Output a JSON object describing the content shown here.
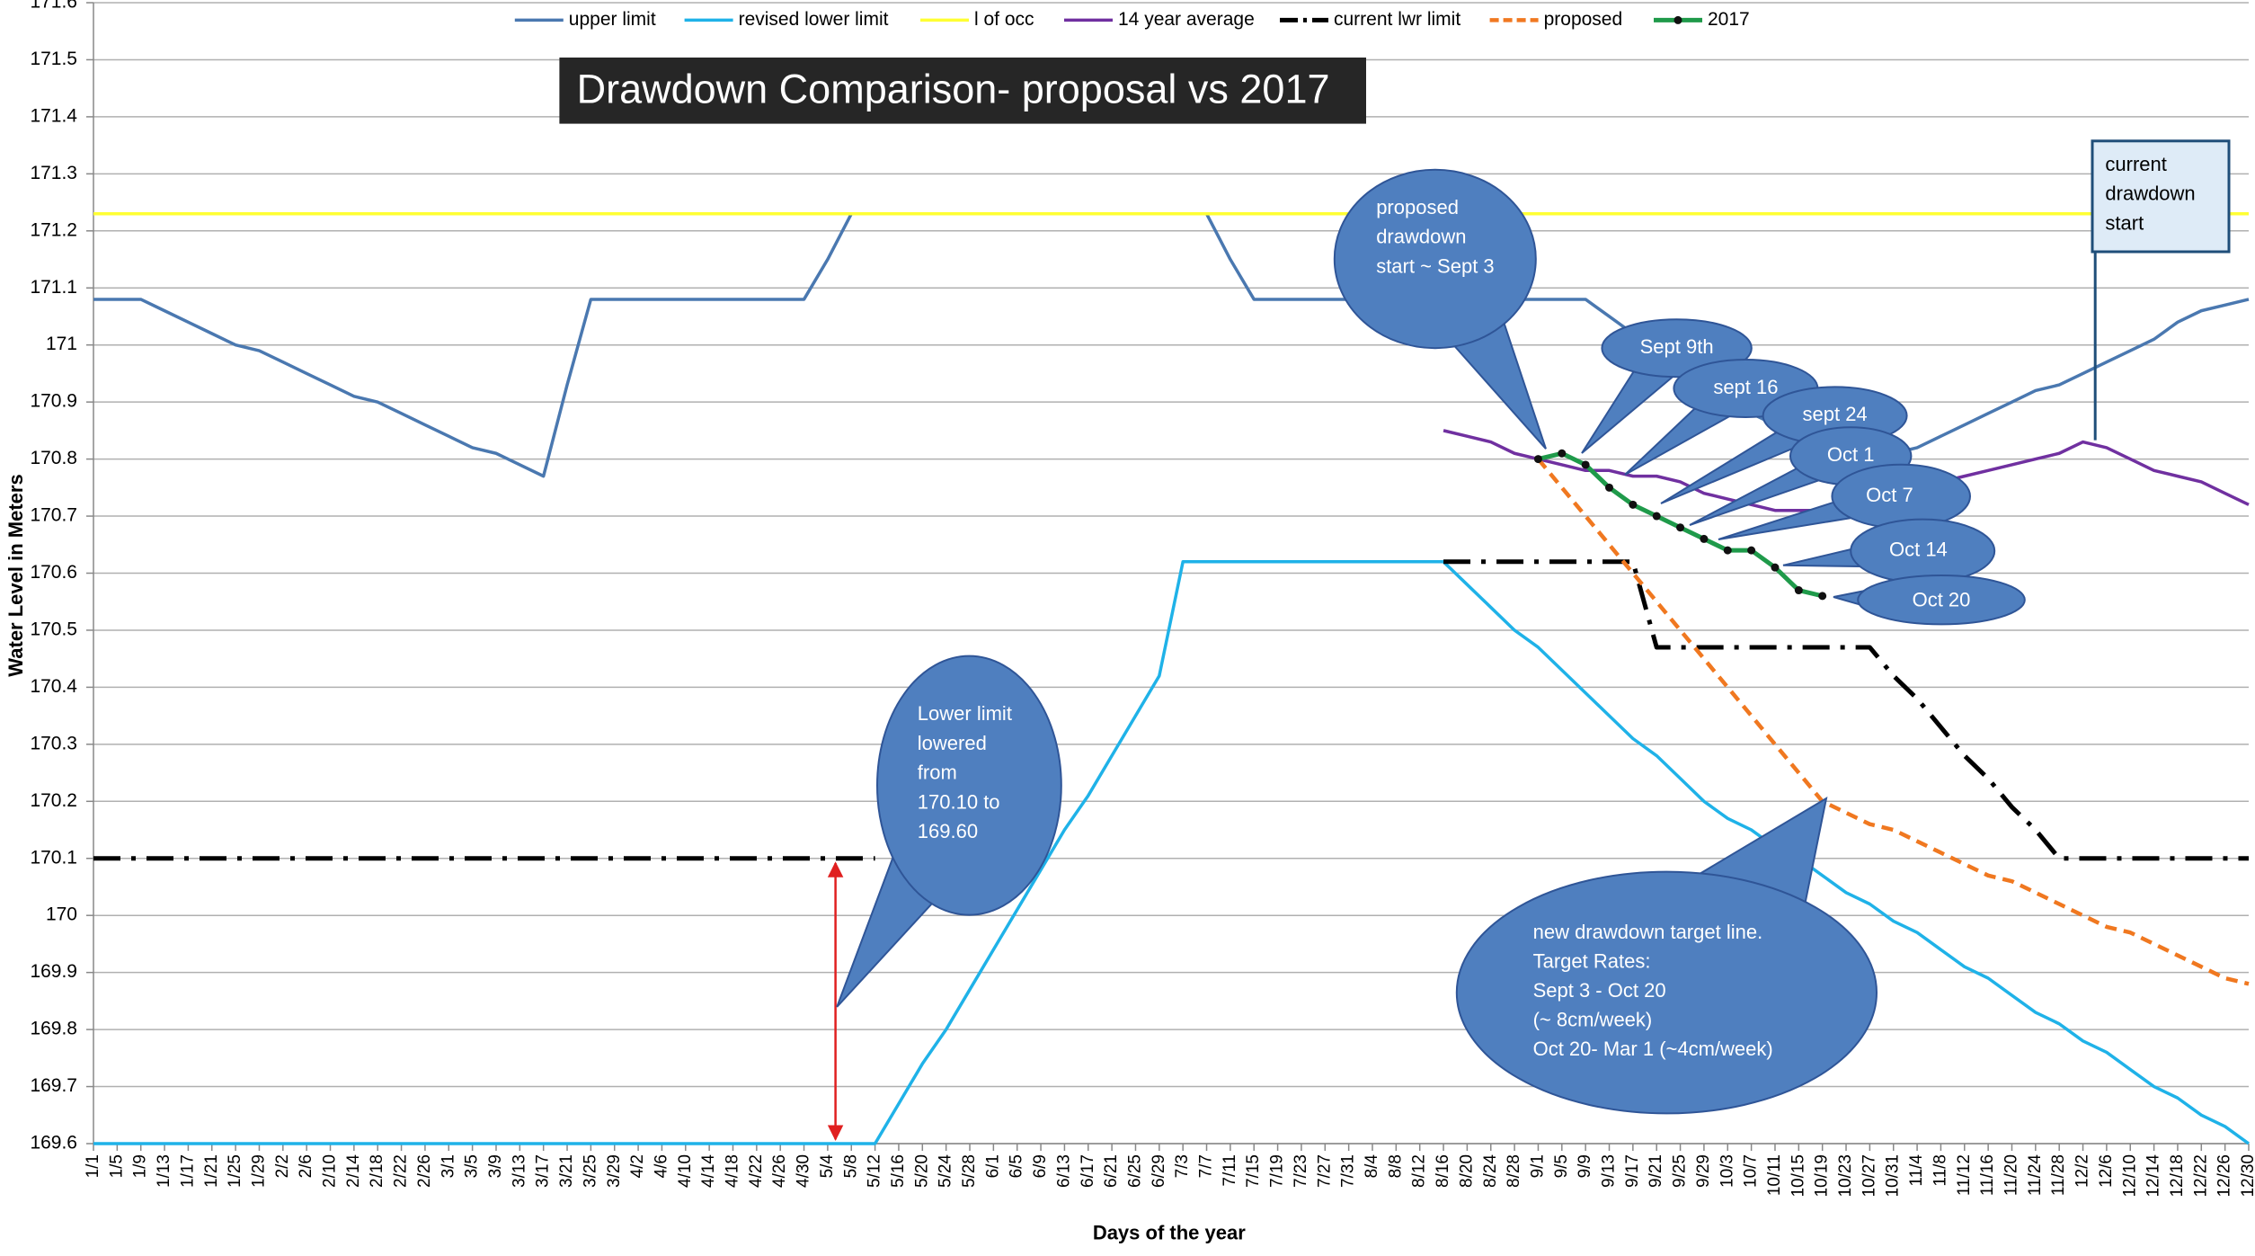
{
  "chart_data": {
    "type": "line",
    "title": "Drawdown Comparison- proposal vs 2017",
    "x_label": "Days of the year",
    "y_label": "Water Level in Meters",
    "ylim": [
      169.6,
      171.6
    ],
    "yticks": [
      169.6,
      169.7,
      169.8,
      169.9,
      170,
      170.1,
      170.2,
      170.3,
      170.4,
      170.5,
      170.6,
      170.7,
      170.8,
      170.9,
      171,
      171.1,
      171.2,
      171.3,
      171.4,
      171.5,
      171.6
    ],
    "grid": true,
    "legend": "top",
    "categories": [
      "1/1",
      "1/5",
      "1/9",
      "1/13",
      "1/17",
      "1/21",
      "1/25",
      "1/29",
      "2/2",
      "2/6",
      "2/10",
      "2/14",
      "2/18",
      "2/22",
      "2/26",
      "3/1",
      "3/5",
      "3/9",
      "3/13",
      "3/17",
      "3/21",
      "3/25",
      "3/29",
      "4/2",
      "4/6",
      "4/10",
      "4/14",
      "4/18",
      "4/22",
      "4/26",
      "4/30",
      "5/4",
      "5/8",
      "5/12",
      "5/16",
      "5/20",
      "5/24",
      "5/28",
      "6/1",
      "6/5",
      "6/9",
      "6/13",
      "6/17",
      "6/21",
      "6/25",
      "6/29",
      "7/3",
      "7/7",
      "7/11",
      "7/15",
      "7/19",
      "7/23",
      "7/27",
      "7/31",
      "8/4",
      "8/8",
      "8/12",
      "8/16",
      "8/20",
      "8/24",
      "8/28",
      "9/1",
      "9/5",
      "9/9",
      "9/13",
      "9/17",
      "9/21",
      "9/25",
      "9/29",
      "10/3",
      "10/7",
      "10/11",
      "10/15",
      "10/19",
      "10/23",
      "10/27",
      "10/31",
      "11/4",
      "11/8",
      "11/12",
      "11/16",
      "11/20",
      "11/24",
      "11/28",
      "12/2",
      "12/6",
      "12/10",
      "12/14",
      "12/18",
      "12/22",
      "12/26",
      "12/30"
    ],
    "series": [
      {
        "name": "upper limit",
        "color": "#4a78b0",
        "dash": "solid",
        "values": [
          171.08,
          171.08,
          171.08,
          171.06,
          171.04,
          171.02,
          171.0,
          170.99,
          170.97,
          170.95,
          170.93,
          170.91,
          170.9,
          170.88,
          170.86,
          170.84,
          170.82,
          170.81,
          170.79,
          170.77,
          170.93,
          171.08,
          171.08,
          171.08,
          171.08,
          171.08,
          171.08,
          171.08,
          171.08,
          171.08,
          171.08,
          171.15,
          171.23,
          171.23,
          171.23,
          171.23,
          171.23,
          171.23,
          171.23,
          171.23,
          171.23,
          171.23,
          171.23,
          171.23,
          171.23,
          171.23,
          171.23,
          171.23,
          171.15,
          171.08,
          171.08,
          171.08,
          171.08,
          171.08,
          171.08,
          171.08,
          171.08,
          171.08,
          171.08,
          171.08,
          171.08,
          171.08,
          171.08,
          171.08,
          171.05,
          171.02,
          171.0,
          170.97,
          170.94,
          170.91,
          170.88,
          170.86,
          170.83,
          170.8,
          170.77,
          170.79,
          170.81,
          170.82,
          170.84,
          170.86,
          170.88,
          170.9,
          170.92,
          170.93,
          170.95,
          170.97,
          170.99,
          171.01,
          171.04,
          171.06,
          171.07,
          171.08
        ]
      },
      {
        "name": "revised lower limit",
        "color": "#1fb2e8",
        "dash": "solid",
        "values": [
          169.6,
          169.6,
          169.6,
          169.6,
          169.6,
          169.6,
          169.6,
          169.6,
          169.6,
          169.6,
          169.6,
          169.6,
          169.6,
          169.6,
          169.6,
          169.6,
          169.6,
          169.6,
          169.6,
          169.6,
          169.6,
          169.6,
          169.6,
          169.6,
          169.6,
          169.6,
          169.6,
          169.6,
          169.6,
          169.6,
          169.6,
          169.6,
          169.6,
          169.6,
          169.67,
          169.74,
          169.8,
          169.87,
          169.94,
          170.01,
          170.08,
          170.15,
          170.21,
          170.28,
          170.35,
          170.42,
          170.62,
          170.62,
          170.62,
          170.62,
          170.62,
          170.62,
          170.62,
          170.62,
          170.62,
          170.62,
          170.62,
          170.62,
          170.58,
          170.54,
          170.5,
          170.47,
          170.43,
          170.39,
          170.35,
          170.31,
          170.28,
          170.24,
          170.2,
          170.17,
          170.15,
          170.12,
          170.1,
          170.07,
          170.04,
          170.02,
          169.99,
          169.97,
          169.94,
          169.91,
          169.89,
          169.86,
          169.83,
          169.81,
          169.78,
          169.76,
          169.73,
          169.7,
          169.68,
          169.65,
          169.63,
          169.6
        ]
      },
      {
        "name": "l of occ",
        "color": "#ffff33",
        "dash": "solid",
        "values": [
          171.23,
          171.23,
          171.23,
          171.23,
          171.23,
          171.23,
          171.23,
          171.23,
          171.23,
          171.23,
          171.23,
          171.23,
          171.23,
          171.23,
          171.23,
          171.23,
          171.23,
          171.23,
          171.23,
          171.23,
          171.23,
          171.23,
          171.23,
          171.23,
          171.23,
          171.23,
          171.23,
          171.23,
          171.23,
          171.23,
          171.23,
          171.23,
          171.23,
          171.23,
          171.23,
          171.23,
          171.23,
          171.23,
          171.23,
          171.23,
          171.23,
          171.23,
          171.23,
          171.23,
          171.23,
          171.23,
          171.23,
          171.23,
          171.23,
          171.23,
          171.23,
          171.23,
          171.23,
          171.23,
          171.23,
          171.23,
          171.23,
          171.23,
          171.23,
          171.23,
          171.23,
          171.23,
          171.23,
          171.23,
          171.23,
          171.23,
          171.23,
          171.23,
          171.23,
          171.23,
          171.23,
          171.23,
          171.23,
          171.23,
          171.23,
          171.23,
          171.23,
          171.23,
          171.23,
          171.23,
          171.23,
          171.23,
          171.23,
          171.23,
          171.23,
          171.23,
          171.23,
          171.23,
          171.23,
          171.23,
          171.23,
          171.23
        ]
      },
      {
        "name": "14 year average",
        "color": "#7030a0",
        "dash": "solid",
        "values": [
          null,
          null,
          null,
          null,
          null,
          null,
          null,
          null,
          null,
          null,
          null,
          null,
          null,
          null,
          null,
          null,
          null,
          null,
          null,
          null,
          null,
          null,
          null,
          null,
          null,
          null,
          null,
          null,
          null,
          null,
          null,
          null,
          null,
          null,
          null,
          null,
          null,
          null,
          null,
          null,
          null,
          null,
          null,
          null,
          null,
          null,
          null,
          null,
          null,
          null,
          null,
          null,
          null,
          null,
          null,
          null,
          null,
          170.85,
          170.84,
          170.83,
          170.81,
          170.8,
          170.79,
          170.78,
          170.78,
          170.77,
          170.77,
          170.76,
          170.74,
          170.73,
          170.72,
          170.71,
          170.71,
          170.71,
          170.72,
          170.73,
          170.74,
          170.75,
          170.76,
          170.77,
          170.78,
          170.79,
          170.8,
          170.81,
          170.83,
          170.82,
          170.8,
          170.78,
          170.77,
          170.76,
          170.74,
          170.72
        ]
      },
      {
        "name": "current lwr limit",
        "color": "#000000",
        "dash": "dashdot",
        "values": [
          170.1,
          170.1,
          170.1,
          170.1,
          170.1,
          170.1,
          170.1,
          170.1,
          170.1,
          170.1,
          170.1,
          170.1,
          170.1,
          170.1,
          170.1,
          170.1,
          170.1,
          170.1,
          170.1,
          170.1,
          170.1,
          170.1,
          170.1,
          170.1,
          170.1,
          170.1,
          170.1,
          170.1,
          170.1,
          170.1,
          170.1,
          170.1,
          170.1,
          170.1,
          null,
          null,
          null,
          null,
          null,
          null,
          null,
          null,
          null,
          null,
          null,
          null,
          null,
          null,
          null,
          null,
          null,
          null,
          null,
          null,
          null,
          null,
          null,
          170.62,
          170.62,
          170.62,
          170.62,
          170.62,
          170.62,
          170.62,
          170.62,
          170.62,
          170.47,
          170.47,
          170.47,
          170.47,
          170.47,
          170.47,
          170.47,
          170.47,
          170.47,
          170.47,
          170.42,
          170.38,
          170.33,
          170.28,
          170.24,
          170.19,
          170.15,
          170.1,
          170.1,
          170.1,
          170.1,
          170.1,
          170.1,
          170.1,
          170.1,
          170.1
        ]
      },
      {
        "name": "proposed",
        "color": "#f07820",
        "dash": "dashed",
        "values": [
          null,
          null,
          null,
          null,
          null,
          null,
          null,
          null,
          null,
          null,
          null,
          null,
          null,
          null,
          null,
          null,
          null,
          null,
          null,
          null,
          null,
          null,
          null,
          null,
          null,
          null,
          null,
          null,
          null,
          null,
          null,
          null,
          null,
          null,
          null,
          null,
          null,
          null,
          null,
          null,
          null,
          null,
          null,
          null,
          null,
          null,
          null,
          null,
          null,
          null,
          null,
          null,
          null,
          null,
          null,
          null,
          null,
          null,
          null,
          null,
          null,
          170.8,
          170.75,
          170.7,
          170.65,
          170.6,
          170.55,
          170.5,
          170.45,
          170.4,
          170.35,
          170.3,
          170.25,
          170.2,
          170.18,
          170.16,
          170.15,
          170.13,
          170.11,
          170.09,
          170.07,
          170.06,
          170.04,
          170.02,
          170.0,
          169.98,
          169.97,
          169.95,
          169.93,
          169.91,
          169.89,
          169.88
        ]
      },
      {
        "name": "2017",
        "color": "#1f9a4a",
        "dash": "solid",
        "markers": true,
        "values": [
          null,
          null,
          null,
          null,
          null,
          null,
          null,
          null,
          null,
          null,
          null,
          null,
          null,
          null,
          null,
          null,
          null,
          null,
          null,
          null,
          null,
          null,
          null,
          null,
          null,
          null,
          null,
          null,
          null,
          null,
          null,
          null,
          null,
          null,
          null,
          null,
          null,
          null,
          null,
          null,
          null,
          null,
          null,
          null,
          null,
          null,
          null,
          null,
          null,
          null,
          null,
          null,
          null,
          null,
          null,
          null,
          null,
          null,
          null,
          null,
          null,
          170.8,
          170.81,
          170.79,
          170.75,
          170.72,
          170.7,
          170.68,
          170.66,
          170.64,
          170.64,
          170.61,
          170.57,
          170.56,
          null,
          null,
          null,
          null,
          null,
          null,
          null,
          null,
          null,
          null,
          null,
          null,
          null,
          null,
          null,
          null,
          null,
          null
        ]
      }
    ],
    "annotations": [
      {
        "lines": [
          "proposed",
          "drawdown",
          "start ~ Sept 3"
        ]
      },
      {
        "lines": [
          "Sept 9th"
        ]
      },
      {
        "lines": [
          "sept 16"
        ]
      },
      {
        "lines": [
          "sept 24"
        ]
      },
      {
        "lines": [
          "Oct 1"
        ]
      },
      {
        "lines": [
          "Oct 7"
        ]
      },
      {
        "lines": [
          "Oct 14"
        ]
      },
      {
        "lines": [
          "Oct 20"
        ]
      },
      {
        "lines": [
          "Lower limit",
          "lowered",
          "from",
          "170.10 to",
          "169.60"
        ]
      },
      {
        "lines": [
          "new drawdown target line.",
          "Target Rates:",
          "Sept 3 - Oct 20",
          "(~ 8cm/week)",
          "Oct 20- Mar 1 (~4cm/week)"
        ]
      },
      {
        "lines": [
          "current",
          "drawdown",
          "start"
        ]
      }
    ]
  }
}
